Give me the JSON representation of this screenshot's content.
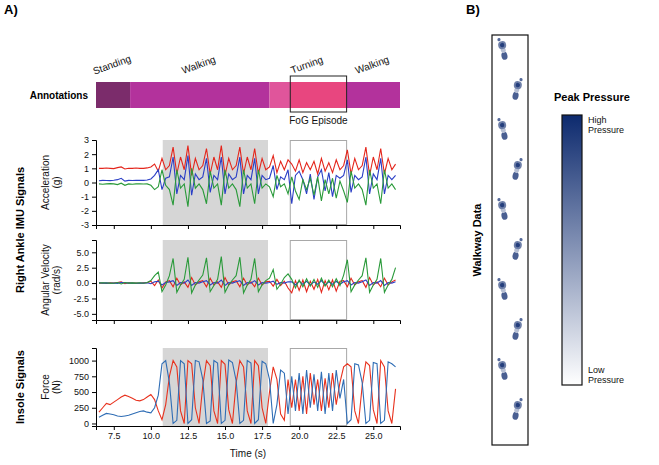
{
  "panel_labels": {
    "a": "A)",
    "b": "B)"
  },
  "annotations": {
    "title": "Annotations",
    "xlim": [
      6.3,
      26.8
    ],
    "segments": [
      {
        "label": "Standing",
        "start": 6.3,
        "end": 8.6,
        "color": "#7b2c6b"
      },
      {
        "label": "Walking",
        "start": 8.6,
        "end": 18.0,
        "color": "#b3329c"
      },
      {
        "label": "Turning",
        "start": 18.0,
        "end": 23.2,
        "color": "#e0559b"
      },
      {
        "label": "Walking",
        "start": 23.2,
        "end": 26.8,
        "color": "#b3329c"
      }
    ],
    "episode": {
      "label": "FoG Episode",
      "start": 19.4,
      "end": 23.2,
      "color": "#e8467f"
    }
  },
  "group_labels": [
    "Right Ankle IMU Signals",
    "Insole Signals"
  ],
  "regions": {
    "shaded": [
      10.8,
      17.9
    ],
    "outlined": [
      19.4,
      23.2
    ]
  },
  "chart_data": [
    {
      "type": "line",
      "y_label": "Acceleration (g)",
      "xlim": [
        6.3,
        26.8
      ],
      "xticks": [
        7.5,
        10,
        12.5,
        15,
        17.5,
        20,
        22.5,
        25
      ],
      "ylim": [
        -3,
        3
      ],
      "yticks": [
        -3,
        -2,
        -1,
        0,
        1,
        2,
        3
      ],
      "tick_labels": "y",
      "x": [
        6.5,
        6.75,
        7,
        7.25,
        7.5,
        7.75,
        8,
        8.25,
        8.5,
        8.75,
        9,
        9.25,
        9.5,
        9.75,
        10,
        10.25,
        10.5,
        10.75,
        11,
        11.25,
        11.5,
        11.75,
        12,
        12.25,
        12.5,
        12.75,
        13,
        13.25,
        13.5,
        13.75,
        14,
        14.25,
        14.5,
        14.75,
        15,
        15.25,
        15.5,
        15.75,
        16,
        16.25,
        16.5,
        16.75,
        17,
        17.25,
        17.5,
        17.75,
        18,
        18.25,
        18.5,
        18.75,
        19,
        19.25,
        19.5,
        19.75,
        20,
        20.25,
        20.5,
        20.75,
        21,
        21.25,
        21.5,
        21.75,
        22,
        22.25,
        22.5,
        22.75,
        23,
        23.25,
        23.5,
        23.75,
        24,
        24.25,
        24.5,
        24.75,
        25,
        25.25,
        25.5,
        25.75,
        26,
        26.25,
        26.5
      ],
      "series": [
        {
          "color": "#e4261c",
          "values": [
            1.0,
            1.0,
            1.02,
            1.0,
            0.98,
            1.05,
            1.1,
            0.95,
            1.0,
            1.0,
            1.02,
            1.0,
            1.0,
            1.03,
            1.1,
            1.3,
            0.8,
            1.7,
            0.9,
            1.2,
            2.5,
            0.6,
            1.8,
            0.9,
            2.6,
            0.5,
            1.7,
            0.9,
            1.2,
            2.4,
            0.6,
            1.8,
            0.9,
            2.6,
            0.5,
            1.7,
            0.9,
            1.2,
            2.5,
            0.6,
            1.8,
            0.9,
            2.4,
            0.6,
            1.7,
            0.9,
            1.1,
            1.9,
            0.7,
            1.5,
            0.9,
            1.6,
            1.3,
            0.8,
            1.6,
            0.7,
            1.4,
            0.9,
            1.5,
            0.6,
            1.7,
            0.8,
            1.4,
            0.7,
            1.6,
            0.9,
            1.2,
            2.3,
            0.6,
            1.7,
            0.9,
            1.2,
            2.5,
            0.5,
            1.8,
            0.9,
            2.4,
            0.6,
            1.7,
            0.9,
            1.3
          ]
        },
        {
          "color": "#2b3fc6",
          "values": [
            0.12,
            0.15,
            0.14,
            0.13,
            0.16,
            0.2,
            0.3,
            0.1,
            0.15,
            0.14,
            0.15,
            0.16,
            0.15,
            0.18,
            0.25,
            0.5,
            0.9,
            -0.5,
            0.3,
            0.4,
            1.8,
            -0.8,
            0.5,
            0.2,
            1.9,
            -0.9,
            0.6,
            0.2,
            0.4,
            1.7,
            -0.7,
            0.5,
            0.2,
            1.8,
            -0.8,
            0.6,
            0.2,
            0.4,
            1.8,
            -0.8,
            0.5,
            0.2,
            1.7,
            -0.8,
            0.5,
            0.2,
            0.3,
            1.2,
            -0.5,
            0.4,
            0.2,
            0.9,
            -1.5,
            0.5,
            0.8,
            0.2,
            -0.8,
            0.6,
            -1.2,
            0.4,
            0.9,
            -0.6,
            0.7,
            -1.0,
            0.5,
            0.3,
            0.5,
            1.6,
            -0.7,
            0.5,
            0.2,
            0.4,
            1.8,
            -0.8,
            0.6,
            0.2,
            1.7,
            -0.8,
            0.5,
            0.2,
            0.5
          ]
        },
        {
          "color": "#2a9a3a",
          "values": [
            -0.1,
            -0.12,
            -0.1,
            -0.08,
            -0.1,
            -0.15,
            -0.05,
            -0.2,
            -0.1,
            -0.12,
            -0.1,
            -0.1,
            -0.11,
            -0.1,
            -0.2,
            -0.5,
            -0.3,
            0.9,
            -0.2,
            -0.5,
            -1.6,
            0.9,
            -0.4,
            -0.1,
            -1.7,
            1.0,
            -0.4,
            -0.1,
            -0.5,
            -1.5,
            0.8,
            -0.4,
            -0.1,
            -1.6,
            0.9,
            -0.4,
            -0.1,
            -0.5,
            -1.7,
            0.9,
            -0.4,
            -0.1,
            -1.5,
            0.9,
            -0.4,
            -0.1,
            -0.3,
            -1.0,
            0.5,
            -0.3,
            -0.1,
            -0.8,
            0.4,
            -0.6,
            -1.2,
            0.2,
            -0.5,
            0.3,
            -0.9,
            0.4,
            -1.3,
            0.2,
            -0.8,
            0.3,
            -1.1,
            0.1,
            -0.6,
            -1.4,
            0.8,
            -0.4,
            -0.1,
            -0.5,
            -1.6,
            0.9,
            -0.4,
            -0.1,
            -1.5,
            0.9,
            -0.4,
            -0.1,
            -0.5
          ]
        }
      ]
    },
    {
      "type": "line",
      "y_label": "Angular Velocity (rad/s)",
      "xlim": [
        6.3,
        26.8
      ],
      "xticks": [
        7.5,
        10,
        12.5,
        15,
        17.5,
        20,
        22.5,
        25
      ],
      "ylim": [
        -6,
        7
      ],
      "yticks": [
        {
          "value": -5,
          "label": "-5.0"
        },
        -2.5,
        {
          "value": 0,
          "label": "0.0"
        },
        2.5,
        {
          "value": 5,
          "label": "5.0"
        }
      ],
      "tick_labels": "y",
      "x": [
        6.5,
        6.75,
        7,
        7.25,
        7.5,
        7.75,
        8,
        8.25,
        8.5,
        8.75,
        9,
        9.25,
        9.5,
        9.75,
        10,
        10.25,
        10.5,
        10.75,
        11,
        11.25,
        11.5,
        11.75,
        12,
        12.25,
        12.5,
        12.75,
        13,
        13.25,
        13.5,
        13.75,
        14,
        14.25,
        14.5,
        14.75,
        15,
        15.25,
        15.5,
        15.75,
        16,
        16.25,
        16.5,
        16.75,
        17,
        17.25,
        17.5,
        17.75,
        18,
        18.25,
        18.5,
        18.75,
        19,
        19.25,
        19.5,
        19.75,
        20,
        20.25,
        20.5,
        20.75,
        21,
        21.25,
        21.5,
        21.75,
        22,
        22.25,
        22.5,
        22.75,
        23,
        23.25,
        23.5,
        23.75,
        24,
        24.25,
        24.5,
        24.75,
        25,
        25.25,
        25.5,
        25.75,
        26,
        26.25,
        26.5
      ],
      "series": [
        {
          "color": "#e4261c",
          "values": [
            0.0,
            0.02,
            -0.05,
            0.03,
            0.0,
            0.1,
            0.2,
            -0.1,
            0.05,
            0.0,
            0.02,
            -0.02,
            0.03,
            0.05,
            0.3,
            -0.4,
            0.5,
            -0.8,
            0.2,
            0.4,
            -0.6,
            0.8,
            -0.3,
            0.2,
            -0.7,
            0.9,
            -0.3,
            0.2,
            0.4,
            -0.6,
            0.8,
            -0.3,
            0.2,
            -0.7,
            0.9,
            -0.3,
            0.2,
            0.4,
            -0.6,
            0.8,
            -0.3,
            0.2,
            -0.6,
            0.8,
            -0.3,
            0.2,
            0.3,
            -0.5,
            0.6,
            -0.4,
            0.3,
            -0.8,
            -1.6,
            0.4,
            -1.2,
            0.5,
            -1.4,
            0.3,
            -1.0,
            0.6,
            -1.5,
            0.4,
            -1.1,
            0.5,
            -1.3,
            0.3,
            0.4,
            -0.6,
            0.8,
            -0.3,
            0.2,
            0.4,
            -0.7,
            0.9,
            -0.3,
            0.2,
            -0.6,
            0.8,
            -0.3,
            0.2,
            0.5
          ]
        },
        {
          "color": "#2b3fc6",
          "values": [
            0.05,
            0.0,
            0.03,
            -0.02,
            0.02,
            -0.05,
            0.1,
            0.05,
            0.0,
            0.02,
            -0.03,
            0.02,
            0.0,
            0.05,
            -0.1,
            0.2,
            0.3,
            -0.3,
            0.1,
            0.2,
            0.4,
            -0.4,
            0.1,
            0.0,
            0.5,
            -0.4,
            0.1,
            0.0,
            0.2,
            0.4,
            -0.3,
            0.1,
            0.0,
            0.5,
            -0.4,
            0.1,
            0.0,
            0.2,
            0.4,
            -0.4,
            0.1,
            0.0,
            0.4,
            -0.3,
            0.1,
            0.0,
            0.1,
            0.3,
            -0.2,
            0.1,
            0.0,
            0.2,
            0.2,
            -0.3,
            0.3,
            -0.2,
            0.3,
            -0.3,
            0.2,
            -0.2,
            0.4,
            -0.3,
            0.2,
            -0.2,
            0.3,
            -0.2,
            0.2,
            0.4,
            -0.3,
            0.1,
            0.0,
            0.2,
            0.5,
            -0.4,
            0.1,
            0.0,
            0.4,
            -0.4,
            0.1,
            0.0,
            0.2
          ]
        },
        {
          "color": "#2a9a3a",
          "values": [
            0.0,
            0.05,
            0.02,
            0.0,
            -0.03,
            0.1,
            -0.15,
            0.1,
            0.0,
            0.03,
            0.0,
            0.05,
            -0.02,
            0.1,
            0.4,
            1.2,
            1.8,
            -1.4,
            -0.3,
            1.2,
            4.0,
            -1.5,
            -0.3,
            0.6,
            4.2,
            -1.6,
            -0.3,
            0.5,
            1.3,
            4.1,
            -1.4,
            -0.4,
            0.6,
            4.3,
            -1.5,
            -0.3,
            0.5,
            1.2,
            4.2,
            -1.6,
            -0.3,
            0.6,
            4.0,
            -1.4,
            -0.3,
            0.4,
            0.8,
            2.2,
            -1.0,
            -0.2,
            0.9,
            1.5,
            0.6,
            -0.8,
            0.5,
            -0.6,
            0.7,
            -0.5,
            0.6,
            -0.7,
            0.8,
            -0.5,
            0.5,
            -0.6,
            0.7,
            -0.4,
            1.3,
            3.8,
            -1.4,
            -0.3,
            0.5,
            1.2,
            4.1,
            -1.5,
            -0.3,
            0.6,
            4.0,
            -1.5,
            -0.3,
            0.6,
            2.5
          ]
        }
      ]
    },
    {
      "type": "line",
      "y_label": "Force (N)",
      "x_label": "Time (s)",
      "xlim": [
        6.3,
        26.8
      ],
      "xticks": [
        7.5,
        {
          "value": 10,
          "label": "10.0"
        },
        12.5,
        {
          "value": 15,
          "label": "15.0"
        },
        17.5,
        {
          "value": 20,
          "label": "20.0"
        },
        22.5,
        {
          "value": 25,
          "label": "25.0"
        }
      ],
      "ylim": [
        -40,
        1200
      ],
      "yticks": [
        0,
        250,
        500,
        750,
        1000
      ],
      "x": [
        6.5,
        6.75,
        7,
        7.25,
        7.5,
        7.75,
        8,
        8.25,
        8.5,
        8.75,
        9,
        9.25,
        9.5,
        9.75,
        10,
        10.25,
        10.5,
        10.75,
        11,
        11.25,
        11.5,
        11.75,
        12,
        12.25,
        12.5,
        12.75,
        13,
        13.25,
        13.5,
        13.75,
        14,
        14.25,
        14.5,
        14.75,
        15,
        15.25,
        15.5,
        15.75,
        16,
        16.25,
        16.5,
        16.75,
        17,
        17.25,
        17.5,
        17.75,
        18,
        18.25,
        18.5,
        18.75,
        19,
        19.25,
        19.5,
        19.75,
        20,
        20.25,
        20.5,
        20.75,
        21,
        21.25,
        21.5,
        21.75,
        22,
        22.25,
        22.5,
        22.75,
        23,
        23.25,
        23.5,
        23.75,
        24,
        24.25,
        24.5,
        24.75,
        25,
        25.25,
        25.5,
        25.75,
        26,
        26.25,
        26.5
      ],
      "series": [
        {
          "color": "#e8321e",
          "values": [
            180,
            250,
            320,
            300,
            340,
            380,
            420,
            450,
            430,
            400,
            370,
            360,
            380,
            420,
            460,
            380,
            200,
            60,
            300,
            750,
            1000,
            900,
            200,
            0,
            1000,
            950,
            250,
            0,
            600,
            1000,
            920,
            200,
            0,
            1000,
            940,
            220,
            0,
            650,
            1000,
            900,
            200,
            0,
            1000,
            920,
            250,
            0,
            500,
            900,
            700,
            150,
            50,
            700,
            250,
            700,
            200,
            750,
            150,
            800,
            300,
            700,
            200,
            720,
            250,
            800,
            300,
            650,
            900,
            950,
            900,
            200,
            0,
            600,
            980,
            920,
            220,
            0,
            1000,
            900,
            200,
            0,
            550
          ]
        },
        {
          "color": "#2f6db5",
          "values": [
            100,
            130,
            160,
            150,
            140,
            120,
            110,
            120,
            130,
            150,
            170,
            190,
            200,
            180,
            170,
            250,
            450,
            950,
            1000,
            650,
            0,
            50,
            1000,
            950,
            0,
            60,
            1000,
            980,
            700,
            0,
            40,
            1000,
            960,
            0,
            50,
            1010,
            970,
            680,
            0,
            50,
            1000,
            960,
            0,
            60,
            990,
            950,
            700,
            0,
            300,
            850,
            800,
            150,
            750,
            200,
            800,
            150,
            850,
            250,
            780,
            200,
            820,
            150,
            800,
            200,
            850,
            400,
            700,
            0,
            60,
            950,
            930,
            650,
            0,
            50,
            970,
            950,
            0,
            50,
            980,
            950,
            900
          ]
        }
      ]
    }
  ],
  "walkway": {
    "title": "Walkway Data",
    "colorbar": {
      "title": "Peak Pressure",
      "high_label": "High Pressure",
      "low_label": "Low Pressure",
      "colors": [
        "#0d2a6e",
        "#ffffff"
      ]
    }
  }
}
